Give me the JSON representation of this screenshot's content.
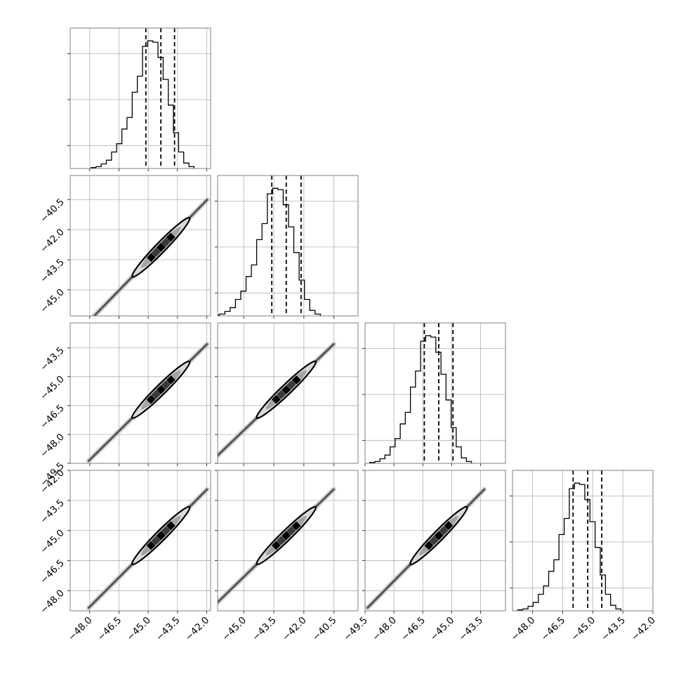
{
  "chart_data": {
    "type": "corner",
    "dimensions": 4,
    "grid": true,
    "colors": {
      "line": "#000000",
      "frame": "#7f7f7f",
      "grid": "#b0b0b0",
      "density": "#222222"
    },
    "axes": [
      {
        "range": [
          -49.0,
          -41.8
        ],
        "ticks": [
          -48.0,
          -46.5,
          -45.0,
          -43.5,
          -42.0
        ]
      },
      {
        "range": [
          -46.3,
          -39.3
        ],
        "ticks": [
          -45.0,
          -43.5,
          -42.0,
          -40.5
        ]
      },
      {
        "range": [
          -49.5,
          -42.2
        ],
        "ticks": [
          -49.5,
          -48.0,
          -46.5,
          -45.0,
          -43.5
        ]
      },
      {
        "range": [
          -49.0,
          -42.0
        ],
        "ticks": [
          -48.0,
          -46.5,
          -45.0,
          -43.5,
          -42.0
        ]
      }
    ],
    "histograms": [
      {
        "dim": 0,
        "counts": [
          2,
          4,
          10,
          18,
          36,
          54,
          86,
          111,
          166,
          201,
          266,
          278,
          275,
          242,
          194,
          138,
          78,
          36,
          12,
          4
        ],
        "quantiles": [
          -45.12,
          -44.35,
          -43.65
        ]
      },
      {
        "dim": 1,
        "counts": [
          2,
          4,
          10,
          18,
          36,
          54,
          86,
          111,
          166,
          201,
          266,
          278,
          275,
          242,
          194,
          138,
          78,
          36,
          12,
          4
        ],
        "quantiles": [
          -43.6,
          -42.88,
          -42.14
        ]
      },
      {
        "dim": 2,
        "counts": [
          2,
          4,
          10,
          18,
          36,
          54,
          86,
          111,
          166,
          201,
          266,
          278,
          275,
          242,
          194,
          138,
          78,
          36,
          12,
          4
        ],
        "quantiles": [
          -46.42,
          -45.67,
          -44.93
        ]
      },
      {
        "dim": 3,
        "counts": [
          2,
          4,
          10,
          18,
          36,
          54,
          86,
          111,
          166,
          201,
          266,
          278,
          275,
          242,
          194,
          138,
          78,
          36,
          12,
          4
        ],
        "quantiles": [
          -45.98,
          -45.25,
          -44.55
        ]
      }
    ],
    "correlation": 0.995,
    "means": [
      -44.35,
      -42.88,
      -45.67,
      -45.25
    ],
    "sigmas": [
      0.74,
      0.74,
      0.74,
      0.72
    ]
  }
}
